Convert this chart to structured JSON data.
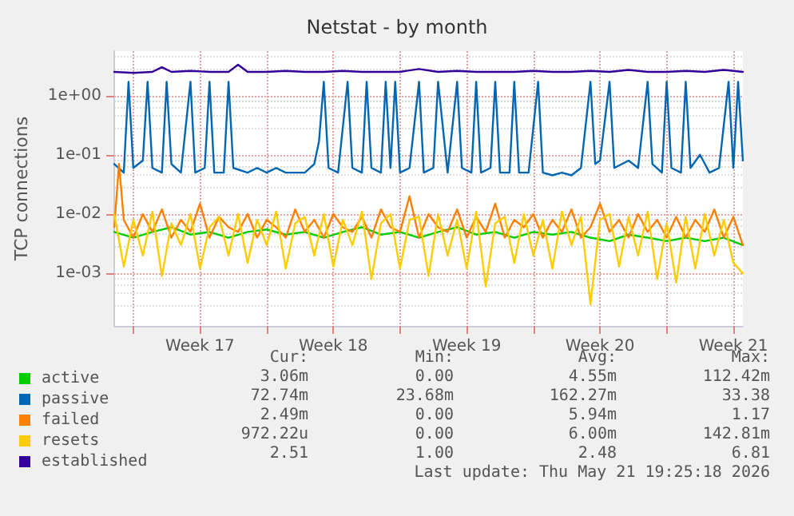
{
  "chart_data": {
    "type": "line",
    "title": "Netstat - by month",
    "ylabel": "TCP connections",
    "log": "y",
    "grid": true,
    "legend": "bottom left",
    "marker": "none",
    "line_style": "solid",
    "xlim": [
      "2026-04-19",
      "2026-05-22"
    ],
    "xticks": [
      {
        "value": "2026-04-20",
        "label": null
      },
      {
        "value": "2026-04-23T12:00",
        "label": "Week 17"
      },
      {
        "value": "2026-04-27",
        "label": null
      },
      {
        "value": "2026-04-30T12:00",
        "label": "Week 18"
      },
      {
        "value": "2026-05-04",
        "label": null
      },
      {
        "value": "2026-05-07T12:00",
        "label": "Week 19"
      },
      {
        "value": "2026-05-11",
        "label": null
      },
      {
        "value": "2026-05-14T12:00",
        "label": "Week 20"
      },
      {
        "value": "2026-05-18",
        "label": null
      },
      {
        "value": "2026-05-21T12:00",
        "label": "Week 21"
      }
    ],
    "ylim": [
      0.00013,
      5.6
    ],
    "yticks": [
      {
        "value": 0.001,
        "label": "1e-03"
      },
      {
        "value": 0.01,
        "label": "1e-02"
      },
      {
        "value": 0.1,
        "label": "1e-01"
      },
      {
        "value": 1,
        "label": "1e+00"
      }
    ],
    "series": [
      {
        "name": "active",
        "color": "#00cc00",
        "x": [
          "2026-04-19",
          "2026-04-20",
          "2026-04-21",
          "2026-04-22",
          "2026-04-23",
          "2026-04-24",
          "2026-04-25",
          "2026-04-26",
          "2026-04-27",
          "2026-04-28",
          "2026-04-29",
          "2026-04-30",
          "2026-05-01",
          "2026-05-02",
          "2026-05-03",
          "2026-05-04",
          "2026-05-05",
          "2026-05-06",
          "2026-05-07",
          "2026-05-08",
          "2026-05-09",
          "2026-05-10",
          "2026-05-11",
          "2026-05-12",
          "2026-05-13",
          "2026-05-14",
          "2026-05-15",
          "2026-05-16",
          "2026-05-17",
          "2026-05-18",
          "2026-05-19",
          "2026-05-20",
          "2026-05-21",
          "2026-05-22"
        ],
        "values": [
          0.005,
          0.004,
          0.005,
          0.006,
          0.0045,
          0.005,
          0.004,
          0.005,
          0.0055,
          0.0045,
          0.005,
          0.004,
          0.005,
          0.006,
          0.0045,
          0.005,
          0.004,
          0.005,
          0.006,
          0.0045,
          0.005,
          0.004,
          0.005,
          0.0045,
          0.005,
          0.004,
          0.0035,
          0.0045,
          0.004,
          0.0035,
          0.004,
          0.0035,
          0.004,
          0.003
        ]
      },
      {
        "name": "passive",
        "color": "#0066b3",
        "x": [
          "2026-04-19",
          "2026-04-19T12:00",
          "2026-04-19T18:00",
          "2026-04-20",
          "2026-04-20T12:00",
          "2026-04-20T18:00",
          "2026-04-21",
          "2026-04-21T12:00",
          "2026-04-21T18:00",
          "2026-04-22",
          "2026-04-22T12:00",
          "2026-04-23",
          "2026-04-23T06:00",
          "2026-04-23T18:00",
          "2026-04-24",
          "2026-04-24T06:00",
          "2026-04-24T18:00",
          "2026-04-25",
          "2026-04-25T06:00",
          "2026-04-26",
          "2026-04-26T12:00",
          "2026-04-27",
          "2026-04-27T12:00",
          "2026-04-28",
          "2026-04-28T12:00",
          "2026-04-29",
          "2026-04-29T12:00",
          "2026-04-29T18:00",
          "2026-04-30",
          "2026-04-30T06:00",
          "2026-04-30T18:00",
          "2026-05-01T06:00",
          "2026-05-01T12:00",
          "2026-05-02",
          "2026-05-02T06:00",
          "2026-05-02T12:00",
          "2026-05-03",
          "2026-05-03T06:00",
          "2026-05-03T12:00",
          "2026-05-03T18:00",
          "2026-05-04",
          "2026-05-04T12:00",
          "2026-05-05",
          "2026-05-05T06:00",
          "2026-05-05T18:00",
          "2026-05-06",
          "2026-05-06T12:00",
          "2026-05-07",
          "2026-05-07T06:00",
          "2026-05-07T18:00",
          "2026-05-08",
          "2026-05-08T06:00",
          "2026-05-08T18:00",
          "2026-05-09",
          "2026-05-09T06:00",
          "2026-05-09T18:00",
          "2026-05-10",
          "2026-05-10T06:00",
          "2026-05-10T18:00",
          "2026-05-11T06:00",
          "2026-05-11T12:00",
          "2026-05-12",
          "2026-05-12T12:00",
          "2026-05-13",
          "2026-05-13T12:00",
          "2026-05-14",
          "2026-05-14T06:00",
          "2026-05-14T12:00",
          "2026-05-15",
          "2026-05-15T06:00",
          "2026-05-16",
          "2026-05-16T12:00",
          "2026-05-17",
          "2026-05-17T06:00",
          "2026-05-17T18:00",
          "2026-05-18",
          "2026-05-18T06:00",
          "2026-05-18T18:00",
          "2026-05-19",
          "2026-05-19T06:00",
          "2026-05-19T18:00",
          "2026-05-20T06:00",
          "2026-05-20T18:00",
          "2026-05-21T06:00",
          "2026-05-21T12:00",
          "2026-05-21T18:00",
          "2026-05-22"
        ],
        "values": [
          0.07,
          0.05,
          1.7,
          0.06,
          0.08,
          1.7,
          0.06,
          0.05,
          1.7,
          0.07,
          0.05,
          1.7,
          0.05,
          0.06,
          1.7,
          0.05,
          0.05,
          1.7,
          0.06,
          0.05,
          0.06,
          0.05,
          0.06,
          0.05,
          0.05,
          0.05,
          0.07,
          0.17,
          1.7,
          0.06,
          0.05,
          1.7,
          0.06,
          0.05,
          1.7,
          0.06,
          0.05,
          1.7,
          0.06,
          1.7,
          0.05,
          0.06,
          1.7,
          0.05,
          0.06,
          1.7,
          0.05,
          1.7,
          0.06,
          0.05,
          1.7,
          0.05,
          0.06,
          1.7,
          0.05,
          0.05,
          1.7,
          0.05,
          0.05,
          1.7,
          0.05,
          0.045,
          0.05,
          0.045,
          0.06,
          1.7,
          0.07,
          0.08,
          1.7,
          0.06,
          0.08,
          0.06,
          1.7,
          0.07,
          0.05,
          1.7,
          0.06,
          0.05,
          1.7,
          0.06,
          0.1,
          0.05,
          0.06,
          1.7,
          0.06,
          1.7,
          0.08
        ]
      },
      {
        "name": "failed",
        "color": "#ff8000",
        "x": [
          "2026-04-19",
          "2026-04-19T06:00",
          "2026-04-19T12:00",
          "2026-04-20",
          "2026-04-20T12:00",
          "2026-04-21",
          "2026-04-21T12:00",
          "2026-04-22",
          "2026-04-22T12:00",
          "2026-04-23",
          "2026-04-23T12:00",
          "2026-04-24",
          "2026-04-24T12:00",
          "2026-04-25",
          "2026-04-25T12:00",
          "2026-04-26",
          "2026-04-26T12:00",
          "2026-04-27",
          "2026-04-27T12:00",
          "2026-04-28",
          "2026-04-28T12:00",
          "2026-04-29",
          "2026-04-29T12:00",
          "2026-04-30",
          "2026-04-30T12:00",
          "2026-05-01",
          "2026-05-01T12:00",
          "2026-05-02",
          "2026-05-02T12:00",
          "2026-05-03",
          "2026-05-03T12:00",
          "2026-05-04",
          "2026-05-04T12:00",
          "2026-05-05",
          "2026-05-05T12:00",
          "2026-05-06",
          "2026-05-06T12:00",
          "2026-05-07",
          "2026-05-07T12:00",
          "2026-05-08",
          "2026-05-08T12:00",
          "2026-05-09",
          "2026-05-09T12:00",
          "2026-05-10",
          "2026-05-10T12:00",
          "2026-05-11",
          "2026-05-11T12:00",
          "2026-05-12",
          "2026-05-12T12:00",
          "2026-05-13",
          "2026-05-13T12:00",
          "2026-05-14",
          "2026-05-14T12:00",
          "2026-05-15",
          "2026-05-15T12:00",
          "2026-05-16",
          "2026-05-16T12:00",
          "2026-05-17",
          "2026-05-17T12:00",
          "2026-05-18",
          "2026-05-18T12:00",
          "2026-05-19",
          "2026-05-19T12:00",
          "2026-05-20",
          "2026-05-20T12:00",
          "2026-05-21",
          "2026-05-21T12:00",
          "2026-05-22"
        ],
        "values": [
          0.006,
          0.07,
          0.008,
          0.004,
          0.01,
          0.005,
          0.012,
          0.004,
          0.008,
          0.005,
          0.015,
          0.004,
          0.009,
          0.006,
          0.005,
          0.01,
          0.004,
          0.008,
          0.006,
          0.004,
          0.012,
          0.005,
          0.008,
          0.004,
          0.01,
          0.006,
          0.005,
          0.009,
          0.004,
          0.012,
          0.006,
          0.005,
          0.02,
          0.004,
          0.01,
          0.006,
          0.005,
          0.012,
          0.004,
          0.009,
          0.005,
          0.015,
          0.004,
          0.008,
          0.006,
          0.01,
          0.004,
          0.008,
          0.005,
          0.012,
          0.004,
          0.006,
          0.015,
          0.005,
          0.008,
          0.004,
          0.01,
          0.005,
          0.008,
          0.004,
          0.009,
          0.004,
          0.008,
          0.005,
          0.012,
          0.004,
          0.009,
          0.003
        ]
      },
      {
        "name": "resets",
        "color": "#ffcc00",
        "x": [
          "2026-04-19",
          "2026-04-19T12:00",
          "2026-04-20",
          "2026-04-20T12:00",
          "2026-04-21",
          "2026-04-21T12:00",
          "2026-04-22",
          "2026-04-22T12:00",
          "2026-04-23",
          "2026-04-23T12:00",
          "2026-04-24",
          "2026-04-24T12:00",
          "2026-04-25",
          "2026-04-25T12:00",
          "2026-04-26",
          "2026-04-26T12:00",
          "2026-04-27",
          "2026-04-27T12:00",
          "2026-04-28",
          "2026-04-28T12:00",
          "2026-04-29",
          "2026-04-29T12:00",
          "2026-04-30",
          "2026-04-30T12:00",
          "2026-05-01",
          "2026-05-01T12:00",
          "2026-05-02",
          "2026-05-02T12:00",
          "2026-05-03",
          "2026-05-03T12:00",
          "2026-05-04",
          "2026-05-04T12:00",
          "2026-05-05",
          "2026-05-05T12:00",
          "2026-05-06",
          "2026-05-06T12:00",
          "2026-05-07",
          "2026-05-07T12:00",
          "2026-05-08",
          "2026-05-08T12:00",
          "2026-05-09",
          "2026-05-09T12:00",
          "2026-05-10",
          "2026-05-10T12:00",
          "2026-05-11",
          "2026-05-11T12:00",
          "2026-05-12",
          "2026-05-12T12:00",
          "2026-05-13",
          "2026-05-13T12:00",
          "2026-05-14",
          "2026-05-14T12:00",
          "2026-05-15",
          "2026-05-15T12:00",
          "2026-05-16",
          "2026-05-16T12:00",
          "2026-05-17",
          "2026-05-17T12:00",
          "2026-05-18",
          "2026-05-18T12:00",
          "2026-05-19",
          "2026-05-19T12:00",
          "2026-05-20",
          "2026-05-20T12:00",
          "2026-05-21",
          "2026-05-21T12:00",
          "2026-05-22"
        ],
        "values": [
          0.01,
          0.0013,
          0.008,
          0.002,
          0.011,
          0.0009,
          0.007,
          0.003,
          0.01,
          0.0012,
          0.006,
          0.009,
          0.002,
          0.01,
          0.0015,
          0.008,
          0.003,
          0.011,
          0.0012,
          0.007,
          0.009,
          0.002,
          0.01,
          0.0013,
          0.008,
          0.003,
          0.011,
          0.0008,
          0.007,
          0.01,
          0.0012,
          0.008,
          0.009,
          0.0009,
          0.01,
          0.002,
          0.008,
          0.0012,
          0.011,
          0.0006,
          0.007,
          0.009,
          0.0015,
          0.01,
          0.002,
          0.008,
          0.0012,
          0.011,
          0.003,
          0.009,
          0.0003,
          0.008,
          0.01,
          0.0013,
          0.009,
          0.002,
          0.011,
          0.0008,
          0.007,
          0.0007,
          0.009,
          0.0012,
          0.01,
          0.002,
          0.008,
          0.0015,
          0.001
        ]
      },
      {
        "name": "established",
        "color": "#330099",
        "x": [
          "2026-04-19",
          "2026-04-20",
          "2026-04-21",
          "2026-04-21T12:00",
          "2026-04-22",
          "2026-04-23",
          "2026-04-24",
          "2026-04-25",
          "2026-04-25T12:00",
          "2026-04-26",
          "2026-04-27",
          "2026-04-28",
          "2026-04-29",
          "2026-04-30",
          "2026-05-01",
          "2026-05-02",
          "2026-05-03",
          "2026-05-04",
          "2026-05-05",
          "2026-05-06",
          "2026-05-07",
          "2026-05-08",
          "2026-05-09",
          "2026-05-10",
          "2026-05-11",
          "2026-05-12",
          "2026-05-13",
          "2026-05-14",
          "2026-05-15",
          "2026-05-16",
          "2026-05-17",
          "2026-05-18",
          "2026-05-19",
          "2026-05-20",
          "2026-05-21",
          "2026-05-22"
        ],
        "values": [
          2.5,
          2.4,
          2.5,
          3.0,
          2.5,
          2.6,
          2.5,
          2.5,
          3.3,
          2.5,
          2.5,
          2.6,
          2.5,
          2.5,
          2.6,
          2.5,
          2.5,
          2.5,
          2.8,
          2.5,
          2.6,
          2.5,
          2.5,
          2.5,
          2.6,
          2.5,
          2.5,
          2.6,
          2.5,
          2.7,
          2.5,
          2.5,
          2.6,
          2.5,
          2.7,
          2.5
        ]
      }
    ],
    "annotations": [
      "Cur:",
      "Min:",
      "Avg:",
      "Max:",
      "3.06m",
      "0.00",
      "4.55m",
      "112.42m",
      "72.74m",
      "23.68m",
      "162.27m",
      "33.38",
      "2.49m",
      "0.00",
      "5.94m",
      "1.17",
      "972.22u",
      "0.00",
      "6.00m",
      "142.81m",
      "2.51",
      "1.00",
      "2.48",
      "6.81",
      "Last update: Thu May 21 19:25:18 2026"
    ]
  }
}
